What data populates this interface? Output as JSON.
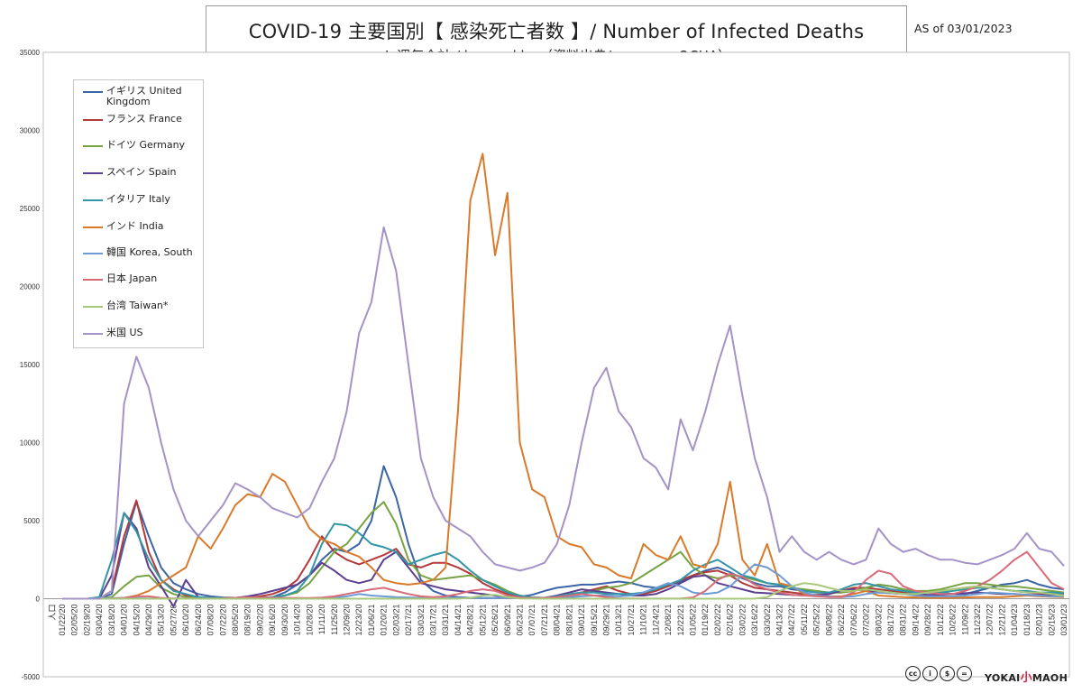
{
  "title": "COVID-19 主要国別【 感染死亡者数 】/ Number of Infected Deaths",
  "subtitle": "※ 週毎合計 / by weekly　（資料出典/source ： OCHA）",
  "as_of": "AS of  03/01/2023",
  "brand": {
    "left": "YOKAI",
    "mid": "小",
    "right": "MAOH"
  },
  "chart_data": {
    "type": "line",
    "y_ticks": [
      "35000",
      "30000",
      "25000",
      "20000",
      "15000",
      "10000",
      "5000",
      "0",
      "-5000"
    ],
    "ylim": [
      -5000,
      35000
    ],
    "x_first_label": "人口",
    "x_labels": [
      "01/22/20",
      "02/05/20",
      "02/19/20",
      "03/04/20",
      "03/18/20",
      "04/01/20",
      "04/15/20",
      "04/29/20",
      "05/13/20",
      "05/27/20",
      "06/10/20",
      "06/24/20",
      "07/08/20",
      "07/22/20",
      "08/05/20",
      "08/19/20",
      "09/02/20",
      "09/16/20",
      "09/30/20",
      "10/14/20",
      "10/28/20",
      "11/11/20",
      "11/25/20",
      "12/09/20",
      "12/23/20",
      "01/06/21",
      "01/20/21",
      "02/03/21",
      "02/17/21",
      "03/03/21",
      "03/17/21",
      "03/31/21",
      "04/14/21",
      "04/28/21",
      "05/12/21",
      "05/26/21",
      "06/09/21",
      "06/23/21",
      "07/07/21",
      "07/21/21",
      "08/04/21",
      "08/18/21",
      "09/01/21",
      "09/15/21",
      "09/29/21",
      "10/13/21",
      "10/27/21",
      "11/10/21",
      "11/24/21",
      "12/08/21",
      "12/22/21",
      "01/05/22",
      "01/19/22",
      "02/02/22",
      "02/16/22",
      "03/02/22",
      "03/16/22",
      "03/30/22",
      "04/13/22",
      "04/27/22",
      "05/11/22",
      "05/25/22",
      "06/08/22",
      "06/22/22",
      "07/06/22",
      "07/20/22",
      "08/03/22",
      "08/17/22",
      "08/31/22",
      "09/14/22",
      "09/28/22",
      "10/12/22",
      "10/26/22",
      "11/09/22",
      "11/23/22",
      "12/07/22",
      "12/21/22",
      "01/04/23",
      "01/18/23",
      "02/01/23",
      "02/15/23",
      "03/01/23"
    ],
    "series": [
      {
        "name": "イギリス United Kingdom",
        "color": "#3b65a6",
        "values": [
          0,
          0,
          0,
          0,
          300,
          3500,
          6200,
          4000,
          2000,
          1000,
          600,
          300,
          150,
          80,
          60,
          50,
          60,
          100,
          400,
          900,
          1500,
          2500,
          3200,
          3000,
          3500,
          5000,
          8500,
          6500,
          3500,
          1200,
          500,
          200,
          100,
          60,
          40,
          50,
          60,
          120,
          250,
          500,
          700,
          800,
          900,
          900,
          1000,
          1100,
          1000,
          800,
          700,
          800,
          1100,
          1500,
          1800,
          2000,
          1700,
          1300,
          1000,
          800,
          800,
          600,
          500,
          400,
          400,
          400,
          500,
          700,
          900,
          800,
          600,
          500,
          400,
          400,
          300,
          300,
          500,
          700,
          900,
          1000,
          1200,
          900,
          700,
          600
        ]
      },
      {
        "name": "フランス France",
        "color": "#b33a3a",
        "values": [
          0,
          0,
          0,
          0,
          500,
          4000,
          6300,
          3000,
          1200,
          600,
          200,
          80,
          60,
          50,
          60,
          80,
          150,
          300,
          600,
          1200,
          2500,
          4000,
          3000,
          2500,
          2200,
          2500,
          2800,
          3200,
          2200,
          2000,
          2300,
          2300,
          2000,
          1600,
          1000,
          600,
          300,
          150,
          80,
          60,
          150,
          250,
          400,
          600,
          800,
          500,
          300,
          300,
          500,
          800,
          1200,
          1500,
          1700,
          1800,
          1500,
          1000,
          700,
          600,
          500,
          400,
          300,
          250,
          300,
          500,
          700,
          700,
          600,
          500,
          400,
          400,
          400,
          500,
          600,
          700,
          800,
          700,
          600,
          500,
          400,
          350,
          300,
          250
        ]
      },
      {
        "name": "ドイツ Germany",
        "color": "#77a341",
        "values": [
          0,
          0,
          0,
          0,
          100,
          800,
          1400,
          1500,
          700,
          300,
          100,
          50,
          30,
          30,
          30,
          40,
          60,
          100,
          200,
          400,
          1000,
          2000,
          3000,
          3500,
          4500,
          5500,
          6200,
          4800,
          2500,
          1500,
          1200,
          1300,
          1400,
          1500,
          1200,
          900,
          500,
          200,
          60,
          40,
          60,
          150,
          300,
          500,
          700,
          800,
          1000,
          1500,
          2000,
          2500,
          3000,
          2000,
          1500,
          1300,
          1500,
          1400,
          1200,
          1000,
          900,
          700,
          600,
          500,
          400,
          400,
          500,
          700,
          900,
          800,
          600,
          500,
          500,
          600,
          800,
          1000,
          1000,
          900,
          800,
          800,
          700,
          600,
          500,
          400
        ]
      },
      {
        "name": "スペイン Spain",
        "color": "#5c3f8f",
        "values": [
          0,
          0,
          0,
          0,
          1500,
          5500,
          4500,
          2000,
          800,
          -500,
          1200,
          100,
          30,
          30,
          50,
          150,
          300,
          500,
          700,
          900,
          1500,
          2300,
          1800,
          1200,
          1000,
          1200,
          2500,
          3000,
          2000,
          1000,
          800,
          600,
          500,
          400,
          300,
          200,
          100,
          60,
          40,
          60,
          200,
          400,
          600,
          500,
          400,
          300,
          200,
          200,
          300,
          600,
          1000,
          1400,
          1500,
          1000,
          800,
          600,
          400,
          350,
          300,
          250,
          200,
          200,
          300,
          500,
          600,
          500,
          400,
          350,
          300,
          300,
          250,
          250,
          300,
          350,
          400,
          350,
          300,
          300,
          250,
          250,
          200,
          200
        ]
      },
      {
        "name": "イタリア Italy",
        "color": "#3396a6",
        "values": [
          0,
          0,
          0,
          100,
          2500,
          5500,
          4300,
          2500,
          1200,
          500,
          300,
          100,
          60,
          40,
          30,
          40,
          60,
          100,
          200,
          500,
          1500,
          3500,
          4800,
          4700,
          4200,
          3500,
          3300,
          3000,
          2200,
          2500,
          2800,
          3000,
          2500,
          1800,
          1200,
          800,
          400,
          200,
          80,
          60,
          150,
          300,
          400,
          400,
          300,
          300,
          300,
          400,
          600,
          900,
          1200,
          1800,
          2200,
          2500,
          2000,
          1500,
          1300,
          1000,
          900,
          700,
          500,
          400,
          400,
          600,
          900,
          1000,
          800,
          600,
          500,
          400,
          400,
          400,
          500,
          600,
          700,
          700,
          600,
          500,
          500,
          400,
          400,
          350
        ]
      },
      {
        "name": "インド India",
        "color": "#d97a2b",
        "values": [
          0,
          0,
          0,
          0,
          0,
          50,
          200,
          500,
          1000,
          1500,
          2000,
          4000,
          3200,
          4500,
          6000,
          6700,
          6500,
          8000,
          7500,
          6000,
          4500,
          3800,
          3500,
          3000,
          2700,
          2000,
          1200,
          1000,
          900,
          1000,
          1200,
          2000,
          12000,
          25500,
          28500,
          22000,
          26000,
          10000,
          7000,
          6500,
          4000,
          3500,
          3300,
          2200,
          2000,
          1500,
          1300,
          3500,
          2800,
          2500,
          4000,
          2200,
          2000,
          3500,
          7500,
          2500,
          1500,
          3500,
          1000,
          800,
          300,
          200,
          150,
          150,
          300,
          500,
          200,
          150,
          100,
          80,
          60,
          50,
          60,
          80,
          100,
          100,
          100,
          150,
          200,
          150,
          120,
          100
        ]
      },
      {
        "name": "韓国 Korea, South",
        "color": "#6d9bd3",
        "values": [
          0,
          0,
          0,
          20,
          40,
          40,
          30,
          10,
          5,
          5,
          5,
          5,
          10,
          10,
          10,
          20,
          30,
          30,
          20,
          20,
          20,
          30,
          80,
          150,
          300,
          200,
          150,
          100,
          80,
          60,
          50,
          50,
          50,
          50,
          50,
          50,
          50,
          40,
          40,
          50,
          80,
          100,
          150,
          200,
          200,
          150,
          200,
          400,
          700,
          1000,
          800,
          400,
          300,
          400,
          800,
          1500,
          2200,
          2000,
          1500,
          800,
          400,
          200,
          150,
          100,
          150,
          300,
          400,
          350,
          300,
          200,
          150,
          150,
          150,
          200,
          300,
          400,
          350,
          300,
          250,
          200,
          150,
          150
        ]
      },
      {
        "name": "日本 Japan",
        "color": "#d86b7a",
        "values": [
          0,
          0,
          0,
          0,
          10,
          50,
          150,
          150,
          50,
          20,
          10,
          5,
          5,
          20,
          60,
          90,
          80,
          60,
          50,
          40,
          40,
          70,
          150,
          300,
          450,
          600,
          700,
          500,
          300,
          150,
          100,
          150,
          300,
          500,
          600,
          500,
          200,
          80,
          40,
          50,
          100,
          200,
          300,
          200,
          100,
          20,
          10,
          5,
          5,
          5,
          10,
          80,
          500,
          1200,
          1600,
          1400,
          900,
          600,
          400,
          250,
          200,
          150,
          100,
          100,
          400,
          1200,
          1800,
          1600,
          800,
          500,
          400,
          300,
          300,
          500,
          800,
          1200,
          1800,
          2500,
          3000,
          2000,
          1000,
          600
        ]
      },
      {
        "name": "台湾 Taiwan*",
        "color": "#a8c97a",
        "values": [
          0,
          0,
          0,
          0,
          0,
          0,
          0,
          0,
          0,
          0,
          0,
          0,
          0,
          0,
          0,
          0,
          0,
          0,
          0,
          0,
          0,
          0,
          0,
          0,
          0,
          0,
          0,
          0,
          0,
          0,
          0,
          0,
          0,
          50,
          200,
          250,
          100,
          20,
          5,
          0,
          0,
          0,
          0,
          0,
          0,
          0,
          0,
          0,
          0,
          0,
          0,
          0,
          0,
          0,
          0,
          0,
          5,
          100,
          500,
          800,
          1000,
          900,
          700,
          500,
          500,
          600,
          500,
          400,
          300,
          300,
          400,
          500,
          600,
          700,
          800,
          700,
          600,
          500,
          400,
          400,
          300,
          200
        ]
      },
      {
        "name": "米国 US",
        "color": "#a493c6",
        "values": [
          0,
          0,
          0,
          0,
          500,
          12500,
          15500,
          13500,
          10000,
          7000,
          5000,
          4000,
          5000,
          6000,
          7400,
          7000,
          6500,
          5800,
          5500,
          5200,
          5800,
          7500,
          9000,
          12000,
          17000,
          19000,
          23800,
          21000,
          15000,
          9000,
          6500,
          5000,
          4500,
          4000,
          3000,
          2200,
          2000,
          1800,
          2000,
          2300,
          3500,
          6000,
          10000,
          13500,
          14800,
          12000,
          11000,
          9000,
          8400,
          7000,
          11500,
          9500,
          12000,
          15000,
          17500,
          13000,
          9000,
          6500,
          3000,
          4000,
          3000,
          2500,
          3000,
          2500,
          2200,
          2500,
          4500,
          3500,
          3000,
          3200,
          2800,
          2500,
          2500,
          2300,
          2200,
          2500,
          2800,
          3200,
          4200,
          3200,
          3000,
          2100
        ]
      }
    ]
  }
}
